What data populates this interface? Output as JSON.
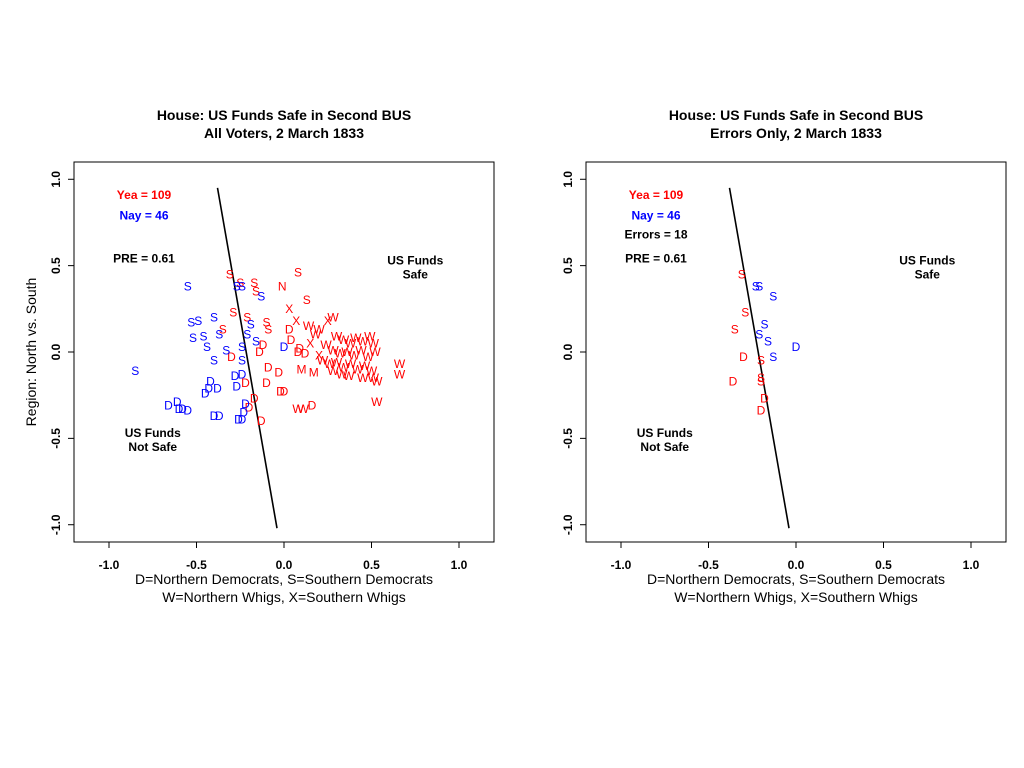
{
  "colors": {
    "yea": "#ff0000",
    "nay": "#0000ff",
    "text": "#000000"
  },
  "chart_data": [
    {
      "type": "scatter",
      "title": "House: US Funds Safe in Second BUS",
      "subtitle": "All Voters, 2 March 1833",
      "xlabel_line1": "D=Northern Democrats, S=Southern Democrats",
      "xlabel_line2": "W=Northern Whigs, X=Southern Whigs",
      "ylabel": "Region: North vs. South",
      "xlim": [
        -1.2,
        1.2
      ],
      "ylim": [
        -1.1,
        1.1
      ],
      "xticks": [
        "-1.0",
        "-0.5",
        "0.0",
        "0.5",
        "1.0"
      ],
      "xtick_values": [
        -1.0,
        -0.5,
        0.0,
        0.5,
        1.0
      ],
      "yticks": [
        "-1.0",
        "-0.5",
        "0.0",
        "0.5",
        "1.0"
      ],
      "ytick_values": [
        -1.0,
        -0.5,
        0.0,
        0.5,
        1.0
      ],
      "annotations": {
        "yea": "Yea =  109",
        "nay": "Nay =  46",
        "errors": "",
        "pre": "PRE =  0.61",
        "safe_line1": "US Funds",
        "safe_line2": "Safe",
        "notsafe_line1": "US Funds",
        "notsafe_line2": "Not Safe"
      },
      "cutting_line": [
        [
          -0.38,
          0.95
        ],
        [
          -0.04,
          -1.02
        ]
      ],
      "points": [
        {
          "x": -0.31,
          "y": 0.45,
          "l": "S",
          "v": "yea"
        },
        {
          "x": -0.25,
          "y": 0.4,
          "l": "S",
          "v": "yea"
        },
        {
          "x": -0.17,
          "y": 0.4,
          "l": "S",
          "v": "yea"
        },
        {
          "x": -0.16,
          "y": 0.35,
          "l": "S",
          "v": "yea"
        },
        {
          "x": 0.08,
          "y": 0.46,
          "l": "S",
          "v": "yea"
        },
        {
          "x": -0.01,
          "y": 0.38,
          "l": "N",
          "v": "yea"
        },
        {
          "x": 0.13,
          "y": 0.3,
          "l": "S",
          "v": "yea"
        },
        {
          "x": 0.03,
          "y": 0.25,
          "l": "X",
          "v": "yea"
        },
        {
          "x": -0.29,
          "y": 0.23,
          "l": "S",
          "v": "yea"
        },
        {
          "x": -0.21,
          "y": 0.2,
          "l": "S",
          "v": "yea"
        },
        {
          "x": -0.35,
          "y": 0.13,
          "l": "S",
          "v": "yea"
        },
        {
          "x": -0.1,
          "y": 0.17,
          "l": "S",
          "v": "yea"
        },
        {
          "x": -0.09,
          "y": 0.13,
          "l": "S",
          "v": "yea"
        },
        {
          "x": 0.07,
          "y": 0.18,
          "l": "X",
          "v": "yea"
        },
        {
          "x": 0.03,
          "y": 0.13,
          "l": "D",
          "v": "yea"
        },
        {
          "x": 0.14,
          "y": 0.15,
          "l": "W",
          "v": "yea"
        },
        {
          "x": 0.2,
          "y": 0.13,
          "l": "W",
          "v": "yea"
        },
        {
          "x": 0.25,
          "y": 0.18,
          "l": "X",
          "v": "yea"
        },
        {
          "x": 0.28,
          "y": 0.2,
          "l": "W",
          "v": "yea"
        },
        {
          "x": 0.18,
          "y": 0.1,
          "l": "W",
          "v": "yea"
        },
        {
          "x": -0.12,
          "y": 0.04,
          "l": "D",
          "v": "yea"
        },
        {
          "x": 0.04,
          "y": 0.07,
          "l": "D",
          "v": "yea"
        },
        {
          "x": 0.09,
          "y": 0.02,
          "l": "D",
          "v": "yea"
        },
        {
          "x": 0.15,
          "y": 0.05,
          "l": "X",
          "v": "yea"
        },
        {
          "x": -0.3,
          "y": -0.03,
          "l": "D",
          "v": "yea"
        },
        {
          "x": -0.14,
          "y": 0.0,
          "l": "D",
          "v": "yea"
        },
        {
          "x": 0.08,
          "y": 0.0,
          "l": "D",
          "v": "yea"
        },
        {
          "x": 0.12,
          "y": -0.01,
          "l": "D",
          "v": "yea"
        },
        {
          "x": -0.09,
          "y": -0.09,
          "l": "D",
          "v": "yea"
        },
        {
          "x": -0.03,
          "y": -0.12,
          "l": "D",
          "v": "yea"
        },
        {
          "x": 0.1,
          "y": -0.1,
          "l": "M",
          "v": "yea"
        },
        {
          "x": 0.17,
          "y": -0.12,
          "l": "M",
          "v": "yea"
        },
        {
          "x": -0.22,
          "y": -0.18,
          "l": "D",
          "v": "yea"
        },
        {
          "x": -0.1,
          "y": -0.18,
          "l": "D",
          "v": "yea"
        },
        {
          "x": -0.02,
          "y": -0.23,
          "l": "D",
          "v": "yea"
        },
        {
          "x": 0.0,
          "y": -0.23,
          "l": "D",
          "v": "yea"
        },
        {
          "x": -0.17,
          "y": -0.27,
          "l": "D",
          "v": "yea"
        },
        {
          "x": -0.2,
          "y": -0.32,
          "l": "D",
          "v": "yea"
        },
        {
          "x": -0.13,
          "y": -0.4,
          "l": "D",
          "v": "yea"
        },
        {
          "x": 0.08,
          "y": -0.33,
          "l": "W",
          "v": "yea"
        },
        {
          "x": 0.11,
          "y": -0.33,
          "l": "W",
          "v": "yea"
        },
        {
          "x": 0.16,
          "y": -0.31,
          "l": "D",
          "v": "yea"
        },
        {
          "x": 0.53,
          "y": -0.29,
          "l": "W",
          "v": "yea"
        },
        {
          "x": 0.3,
          "y": 0.09,
          "l": "W",
          "v": "yea"
        },
        {
          "x": 0.34,
          "y": 0.07,
          "l": "W",
          "v": "yea"
        },
        {
          "x": 0.38,
          "y": 0.05,
          "l": "W",
          "v": "yea"
        },
        {
          "x": 0.41,
          "y": 0.08,
          "l": "W",
          "v": "yea"
        },
        {
          "x": 0.45,
          "y": 0.06,
          "l": "W",
          "v": "yea"
        },
        {
          "x": 0.49,
          "y": 0.09,
          "l": "W",
          "v": "yea"
        },
        {
          "x": 0.51,
          "y": 0.05,
          "l": "W",
          "v": "yea"
        },
        {
          "x": 0.24,
          "y": 0.04,
          "l": "W",
          "v": "yea"
        },
        {
          "x": 0.28,
          "y": 0.01,
          "l": "W",
          "v": "yea"
        },
        {
          "x": 0.32,
          "y": -0.01,
          "l": "W",
          "v": "yea"
        },
        {
          "x": 0.36,
          "y": 0.0,
          "l": "W",
          "v": "yea"
        },
        {
          "x": 0.4,
          "y": -0.02,
          "l": "W",
          "v": "yea"
        },
        {
          "x": 0.44,
          "y": 0.01,
          "l": "W",
          "v": "yea"
        },
        {
          "x": 0.48,
          "y": -0.03,
          "l": "W",
          "v": "yea"
        },
        {
          "x": 0.52,
          "y": 0.0,
          "l": "W",
          "v": "yea"
        },
        {
          "x": 0.22,
          "y": -0.05,
          "l": "W",
          "v": "yea"
        },
        {
          "x": 0.26,
          "y": -0.07,
          "l": "W",
          "v": "yea"
        },
        {
          "x": 0.3,
          "y": -0.06,
          "l": "W",
          "v": "yea"
        },
        {
          "x": 0.34,
          "y": -0.09,
          "l": "W",
          "v": "yea"
        },
        {
          "x": 0.38,
          "y": -0.07,
          "l": "W",
          "v": "yea"
        },
        {
          "x": 0.42,
          "y": -0.1,
          "l": "W",
          "v": "yea"
        },
        {
          "x": 0.46,
          "y": -0.08,
          "l": "W",
          "v": "yea"
        },
        {
          "x": 0.5,
          "y": -0.11,
          "l": "W",
          "v": "yea"
        },
        {
          "x": 0.33,
          "y": -0.13,
          "l": "W",
          "v": "yea"
        },
        {
          "x": 0.37,
          "y": -0.14,
          "l": "W",
          "v": "yea"
        },
        {
          "x": 0.45,
          "y": -0.15,
          "l": "W",
          "v": "yea"
        },
        {
          "x": 0.51,
          "y": -0.15,
          "l": "W",
          "v": "yea"
        },
        {
          "x": 0.53,
          "y": -0.17,
          "l": "W",
          "v": "yea"
        },
        {
          "x": 0.28,
          "y": -0.11,
          "l": "W",
          "v": "yea"
        },
        {
          "x": 0.2,
          "y": -0.02,
          "l": "X",
          "v": "yea"
        },
        {
          "x": 0.66,
          "y": -0.07,
          "l": "W",
          "v": "yea"
        },
        {
          "x": 0.66,
          "y": -0.13,
          "l": "W",
          "v": "yea"
        },
        {
          "x": -0.55,
          "y": 0.38,
          "l": "S",
          "v": "nay"
        },
        {
          "x": -0.27,
          "y": 0.38,
          "l": "S",
          "v": "nay"
        },
        {
          "x": -0.24,
          "y": 0.38,
          "l": "S",
          "v": "nay"
        },
        {
          "x": -0.13,
          "y": 0.32,
          "l": "S",
          "v": "nay"
        },
        {
          "x": -0.53,
          "y": 0.17,
          "l": "S",
          "v": "nay"
        },
        {
          "x": -0.49,
          "y": 0.18,
          "l": "S",
          "v": "nay"
        },
        {
          "x": -0.4,
          "y": 0.2,
          "l": "S",
          "v": "nay"
        },
        {
          "x": -0.19,
          "y": 0.16,
          "l": "S",
          "v": "nay"
        },
        {
          "x": -0.52,
          "y": 0.08,
          "l": "S",
          "v": "nay"
        },
        {
          "x": -0.46,
          "y": 0.09,
          "l": "S",
          "v": "nay"
        },
        {
          "x": -0.37,
          "y": 0.1,
          "l": "S",
          "v": "nay"
        },
        {
          "x": -0.21,
          "y": 0.1,
          "l": "S",
          "v": "nay"
        },
        {
          "x": -0.44,
          "y": 0.03,
          "l": "S",
          "v": "nay"
        },
        {
          "x": -0.33,
          "y": 0.01,
          "l": "S",
          "v": "nay"
        },
        {
          "x": -0.24,
          "y": 0.03,
          "l": "S",
          "v": "nay"
        },
        {
          "x": -0.16,
          "y": 0.06,
          "l": "S",
          "v": "nay"
        },
        {
          "x": 0.0,
          "y": 0.03,
          "l": "D",
          "v": "nay"
        },
        {
          "x": -0.4,
          "y": -0.05,
          "l": "S",
          "v": "nay"
        },
        {
          "x": -0.24,
          "y": -0.05,
          "l": "S",
          "v": "nay"
        },
        {
          "x": -0.85,
          "y": -0.11,
          "l": "S",
          "v": "nay"
        },
        {
          "x": -0.28,
          "y": -0.14,
          "l": "D",
          "v": "nay"
        },
        {
          "x": -0.24,
          "y": -0.13,
          "l": "D",
          "v": "nay"
        },
        {
          "x": -0.42,
          "y": -0.17,
          "l": "D",
          "v": "nay"
        },
        {
          "x": -0.27,
          "y": -0.2,
          "l": "D",
          "v": "nay"
        },
        {
          "x": -0.43,
          "y": -0.21,
          "l": "D",
          "v": "nay"
        },
        {
          "x": -0.38,
          "y": -0.21,
          "l": "D",
          "v": "nay"
        },
        {
          "x": -0.45,
          "y": -0.24,
          "l": "D",
          "v": "nay"
        },
        {
          "x": -0.61,
          "y": -0.29,
          "l": "D",
          "v": "nay"
        },
        {
          "x": -0.66,
          "y": -0.31,
          "l": "D",
          "v": "nay"
        },
        {
          "x": -0.6,
          "y": -0.33,
          "l": "D",
          "v": "nay"
        },
        {
          "x": -0.58,
          "y": -0.33,
          "l": "D",
          "v": "nay"
        },
        {
          "x": -0.55,
          "y": -0.34,
          "l": "D",
          "v": "nay"
        },
        {
          "x": -0.22,
          "y": -0.3,
          "l": "D",
          "v": "nay"
        },
        {
          "x": -0.4,
          "y": -0.37,
          "l": "D",
          "v": "nay"
        },
        {
          "x": -0.37,
          "y": -0.37,
          "l": "D",
          "v": "nay"
        },
        {
          "x": -0.23,
          "y": -0.35,
          "l": "D",
          "v": "nay"
        },
        {
          "x": -0.26,
          "y": -0.39,
          "l": "D",
          "v": "nay"
        },
        {
          "x": -0.24,
          "y": -0.39,
          "l": "D",
          "v": "nay"
        }
      ]
    },
    {
      "type": "scatter",
      "title": "House: US Funds Safe in Second BUS",
      "subtitle": "Errors Only, 2 March 1833",
      "xlabel_line1": "D=Northern Democrats, S=Southern Democrats",
      "xlabel_line2": "W=Northern Whigs, X=Southern Whigs",
      "ylabel": "",
      "xlim": [
        -1.2,
        1.2
      ],
      "ylim": [
        -1.1,
        1.1
      ],
      "xticks": [
        "-1.0",
        "-0.5",
        "0.0",
        "0.5",
        "1.0"
      ],
      "xtick_values": [
        -1.0,
        -0.5,
        0.0,
        0.5,
        1.0
      ],
      "yticks": [
        "-1.0",
        "-0.5",
        "0.0",
        "0.5",
        "1.0"
      ],
      "ytick_values": [
        -1.0,
        -0.5,
        0.0,
        0.5,
        1.0
      ],
      "annotations": {
        "yea": "Yea =  109",
        "nay": "Nay =  46",
        "errors": "Errors =  18",
        "pre": "PRE =  0.61",
        "safe_line1": "US Funds",
        "safe_line2": "Safe",
        "notsafe_line1": "US Funds",
        "notsafe_line2": "Not Safe"
      },
      "cutting_line": [
        [
          -0.38,
          0.95
        ],
        [
          -0.04,
          -1.02
        ]
      ],
      "points": [
        {
          "x": -0.31,
          "y": 0.45,
          "l": "S",
          "v": "yea"
        },
        {
          "x": -0.29,
          "y": 0.23,
          "l": "S",
          "v": "yea"
        },
        {
          "x": -0.35,
          "y": 0.13,
          "l": "S",
          "v": "yea"
        },
        {
          "x": -0.3,
          "y": -0.03,
          "l": "D",
          "v": "yea"
        },
        {
          "x": -0.36,
          "y": -0.17,
          "l": "D",
          "v": "yea"
        },
        {
          "x": -0.2,
          "y": -0.05,
          "l": "S",
          "v": "yea"
        },
        {
          "x": -0.2,
          "y": -0.15,
          "l": "S",
          "v": "yea"
        },
        {
          "x": -0.2,
          "y": -0.17,
          "l": "S",
          "v": "yea"
        },
        {
          "x": -0.18,
          "y": -0.27,
          "l": "D",
          "v": "yea"
        },
        {
          "x": -0.2,
          "y": -0.34,
          "l": "D",
          "v": "yea"
        },
        {
          "x": -0.23,
          "y": 0.38,
          "l": "S",
          "v": "nay"
        },
        {
          "x": -0.21,
          "y": 0.38,
          "l": "S",
          "v": "nay"
        },
        {
          "x": -0.13,
          "y": 0.32,
          "l": "S",
          "v": "nay"
        },
        {
          "x": -0.18,
          "y": 0.16,
          "l": "S",
          "v": "nay"
        },
        {
          "x": -0.21,
          "y": 0.1,
          "l": "S",
          "v": "nay"
        },
        {
          "x": -0.16,
          "y": 0.06,
          "l": "S",
          "v": "nay"
        },
        {
          "x": 0.0,
          "y": 0.03,
          "l": "D",
          "v": "nay"
        },
        {
          "x": -0.13,
          "y": -0.03,
          "l": "S",
          "v": "nay"
        }
      ]
    }
  ]
}
